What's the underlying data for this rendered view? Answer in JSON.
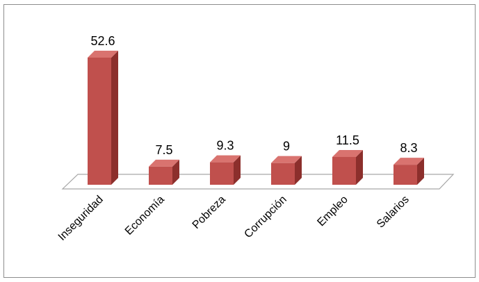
{
  "chart_data": {
    "type": "bar",
    "categories": [
      "Inseguridad",
      "Economía",
      "Pobreza",
      "Corrupción",
      "Empleo",
      "Salarios"
    ],
    "values": [
      52.6,
      7.5,
      9.3,
      9,
      11.5,
      8.3
    ],
    "data_labels": [
      "52.6",
      "7.5",
      "9.3",
      "9",
      "11.5",
      "8.3"
    ],
    "title": "",
    "xlabel": "",
    "ylabel": "",
    "grid": false,
    "legend": "none",
    "style": "3d-column",
    "colors": {
      "bar_front": "#c0504d",
      "bar_side": "#8c2f2c",
      "bar_top": "#d9736f",
      "floor_fill": "#ffffff",
      "floor_stroke": "#a6a6a6",
      "frame": "#8c8c8c"
    }
  }
}
